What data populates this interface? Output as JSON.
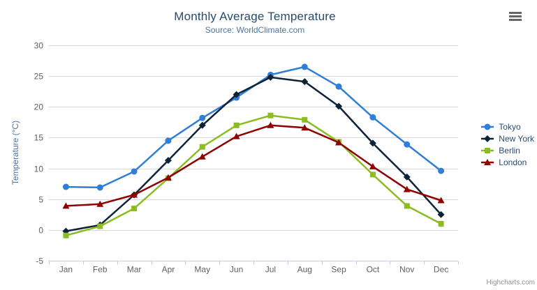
{
  "header": {
    "title": "Monthly Average Temperature",
    "subtitle": "Source: WorldClimate.com"
  },
  "export_menu": {
    "icon": "hamburger-icon"
  },
  "credits": {
    "label": "Highcharts.com"
  },
  "colors": {
    "title": "#274b6d",
    "subtitle": "#4d759e",
    "axis_title": "#4d759e",
    "tick_label": "#606060",
    "grid_line": "#d8d8d8",
    "axis_line": "#c0d0e0",
    "legend_text": "#274b6d",
    "credits_text": "#909090",
    "export_icon": "#666666"
  },
  "chart_data": {
    "type": "line",
    "title": "Monthly Average Temperature",
    "subtitle": "Source: WorldClimate.com",
    "xlabel": "",
    "ylabel": "Temperature (°C)",
    "ylim": [
      -5,
      30
    ],
    "yticks": [
      -5,
      0,
      5,
      10,
      15,
      20,
      25,
      30
    ],
    "grid": true,
    "legend_position": "right",
    "categories": [
      "Jan",
      "Feb",
      "Mar",
      "Apr",
      "May",
      "Jun",
      "Jul",
      "Aug",
      "Sep",
      "Oct",
      "Nov",
      "Dec"
    ],
    "series": [
      {
        "name": "Tokyo",
        "color": "#2f7ed8",
        "marker": "circle",
        "values": [
          7.0,
          6.9,
          9.5,
          14.5,
          18.2,
          21.5,
          25.2,
          26.5,
          23.3,
          18.3,
          13.9,
          9.6
        ]
      },
      {
        "name": "New York",
        "color": "#0d233a",
        "marker": "diamond",
        "values": [
          -0.2,
          0.8,
          5.7,
          11.3,
          17.0,
          22.0,
          24.8,
          24.1,
          20.1,
          14.1,
          8.6,
          2.5
        ]
      },
      {
        "name": "Berlin",
        "color": "#8bbc21",
        "marker": "square",
        "values": [
          -0.9,
          0.6,
          3.5,
          8.4,
          13.5,
          17.0,
          18.6,
          17.9,
          14.3,
          9.0,
          3.9,
          1.0
        ]
      },
      {
        "name": "London",
        "color": "#910000",
        "marker": "triangle",
        "values": [
          3.9,
          4.2,
          5.7,
          8.5,
          11.9,
          15.2,
          17.0,
          16.6,
          14.2,
          10.3,
          6.6,
          4.8
        ]
      }
    ]
  }
}
